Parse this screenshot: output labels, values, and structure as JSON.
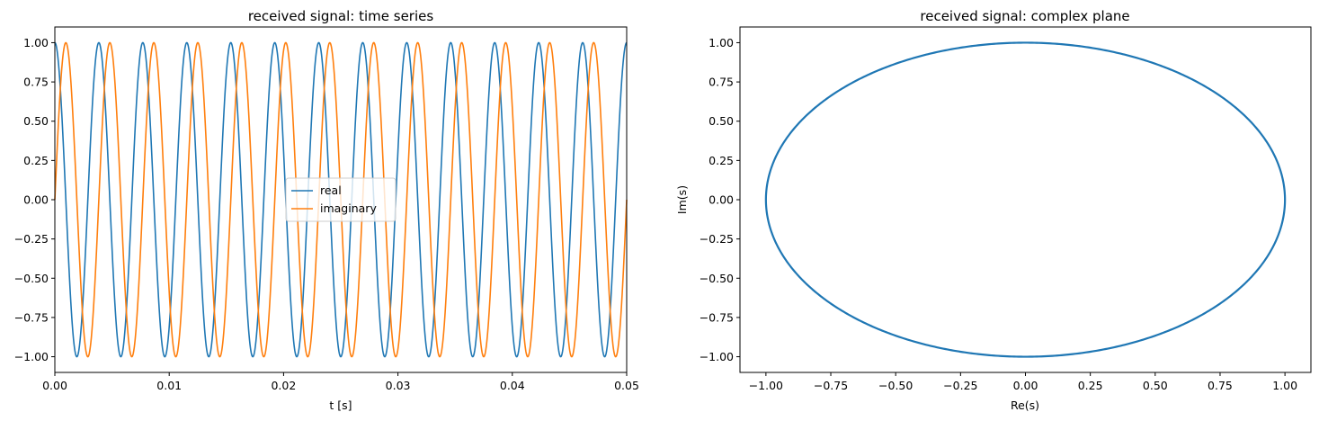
{
  "chart_data": [
    {
      "type": "line",
      "title": "received signal: time series",
      "xlabel": "t [s]",
      "ylabel": "",
      "xlim": [
        0,
        0.05
      ],
      "ylim": [
        -1.1,
        1.1
      ],
      "xticks": [
        0,
        0.01,
        0.02,
        0.03,
        0.04,
        0.05
      ],
      "xtick_labels": [
        "0.00",
        "0.01",
        "0.02",
        "0.03",
        "0.04",
        "0.05"
      ],
      "yticks": [
        -1.0,
        -0.75,
        -0.5,
        -0.25,
        0.0,
        0.25,
        0.5,
        0.75,
        1.0
      ],
      "ytick_labels": [
        "−1.00",
        "−0.75",
        "−0.50",
        "−0.25",
        "0.00",
        "0.25",
        "0.50",
        "0.75",
        "1.00"
      ],
      "grid": false,
      "legend": "center",
      "signal": {
        "frequency_hz": 260,
        "amplitude": 1.0
      },
      "series": [
        {
          "name": "real",
          "function": "cos",
          "color": "#1f77b4"
        },
        {
          "name": "imaginary",
          "function": "sin",
          "color": "#ff7f0e"
        }
      ]
    },
    {
      "type": "line",
      "title": "received signal: complex plane",
      "xlabel": "Re(s)",
      "ylabel": "Im(s)",
      "xlim": [
        -1.1,
        1.1
      ],
      "ylim": [
        -1.1,
        1.1
      ],
      "xticks": [
        -1.0,
        -0.75,
        -0.5,
        -0.25,
        0.0,
        0.25,
        0.5,
        0.75,
        1.0
      ],
      "xtick_labels": [
        "−1.00",
        "−0.75",
        "−0.50",
        "−0.25",
        "0.00",
        "0.25",
        "0.50",
        "0.75",
        "1.00"
      ],
      "yticks": [
        -1.0,
        -0.75,
        -0.5,
        -0.25,
        0.0,
        0.25,
        0.5,
        0.75,
        1.0
      ],
      "ytick_labels": [
        "−1.00",
        "−0.75",
        "−0.50",
        "−0.25",
        "0.00",
        "0.25",
        "0.50",
        "0.75",
        "1.00"
      ],
      "grid": false,
      "curve": {
        "description_shape": "unit circle",
        "radius": 1.0,
        "color": "#1f77b4"
      }
    }
  ]
}
